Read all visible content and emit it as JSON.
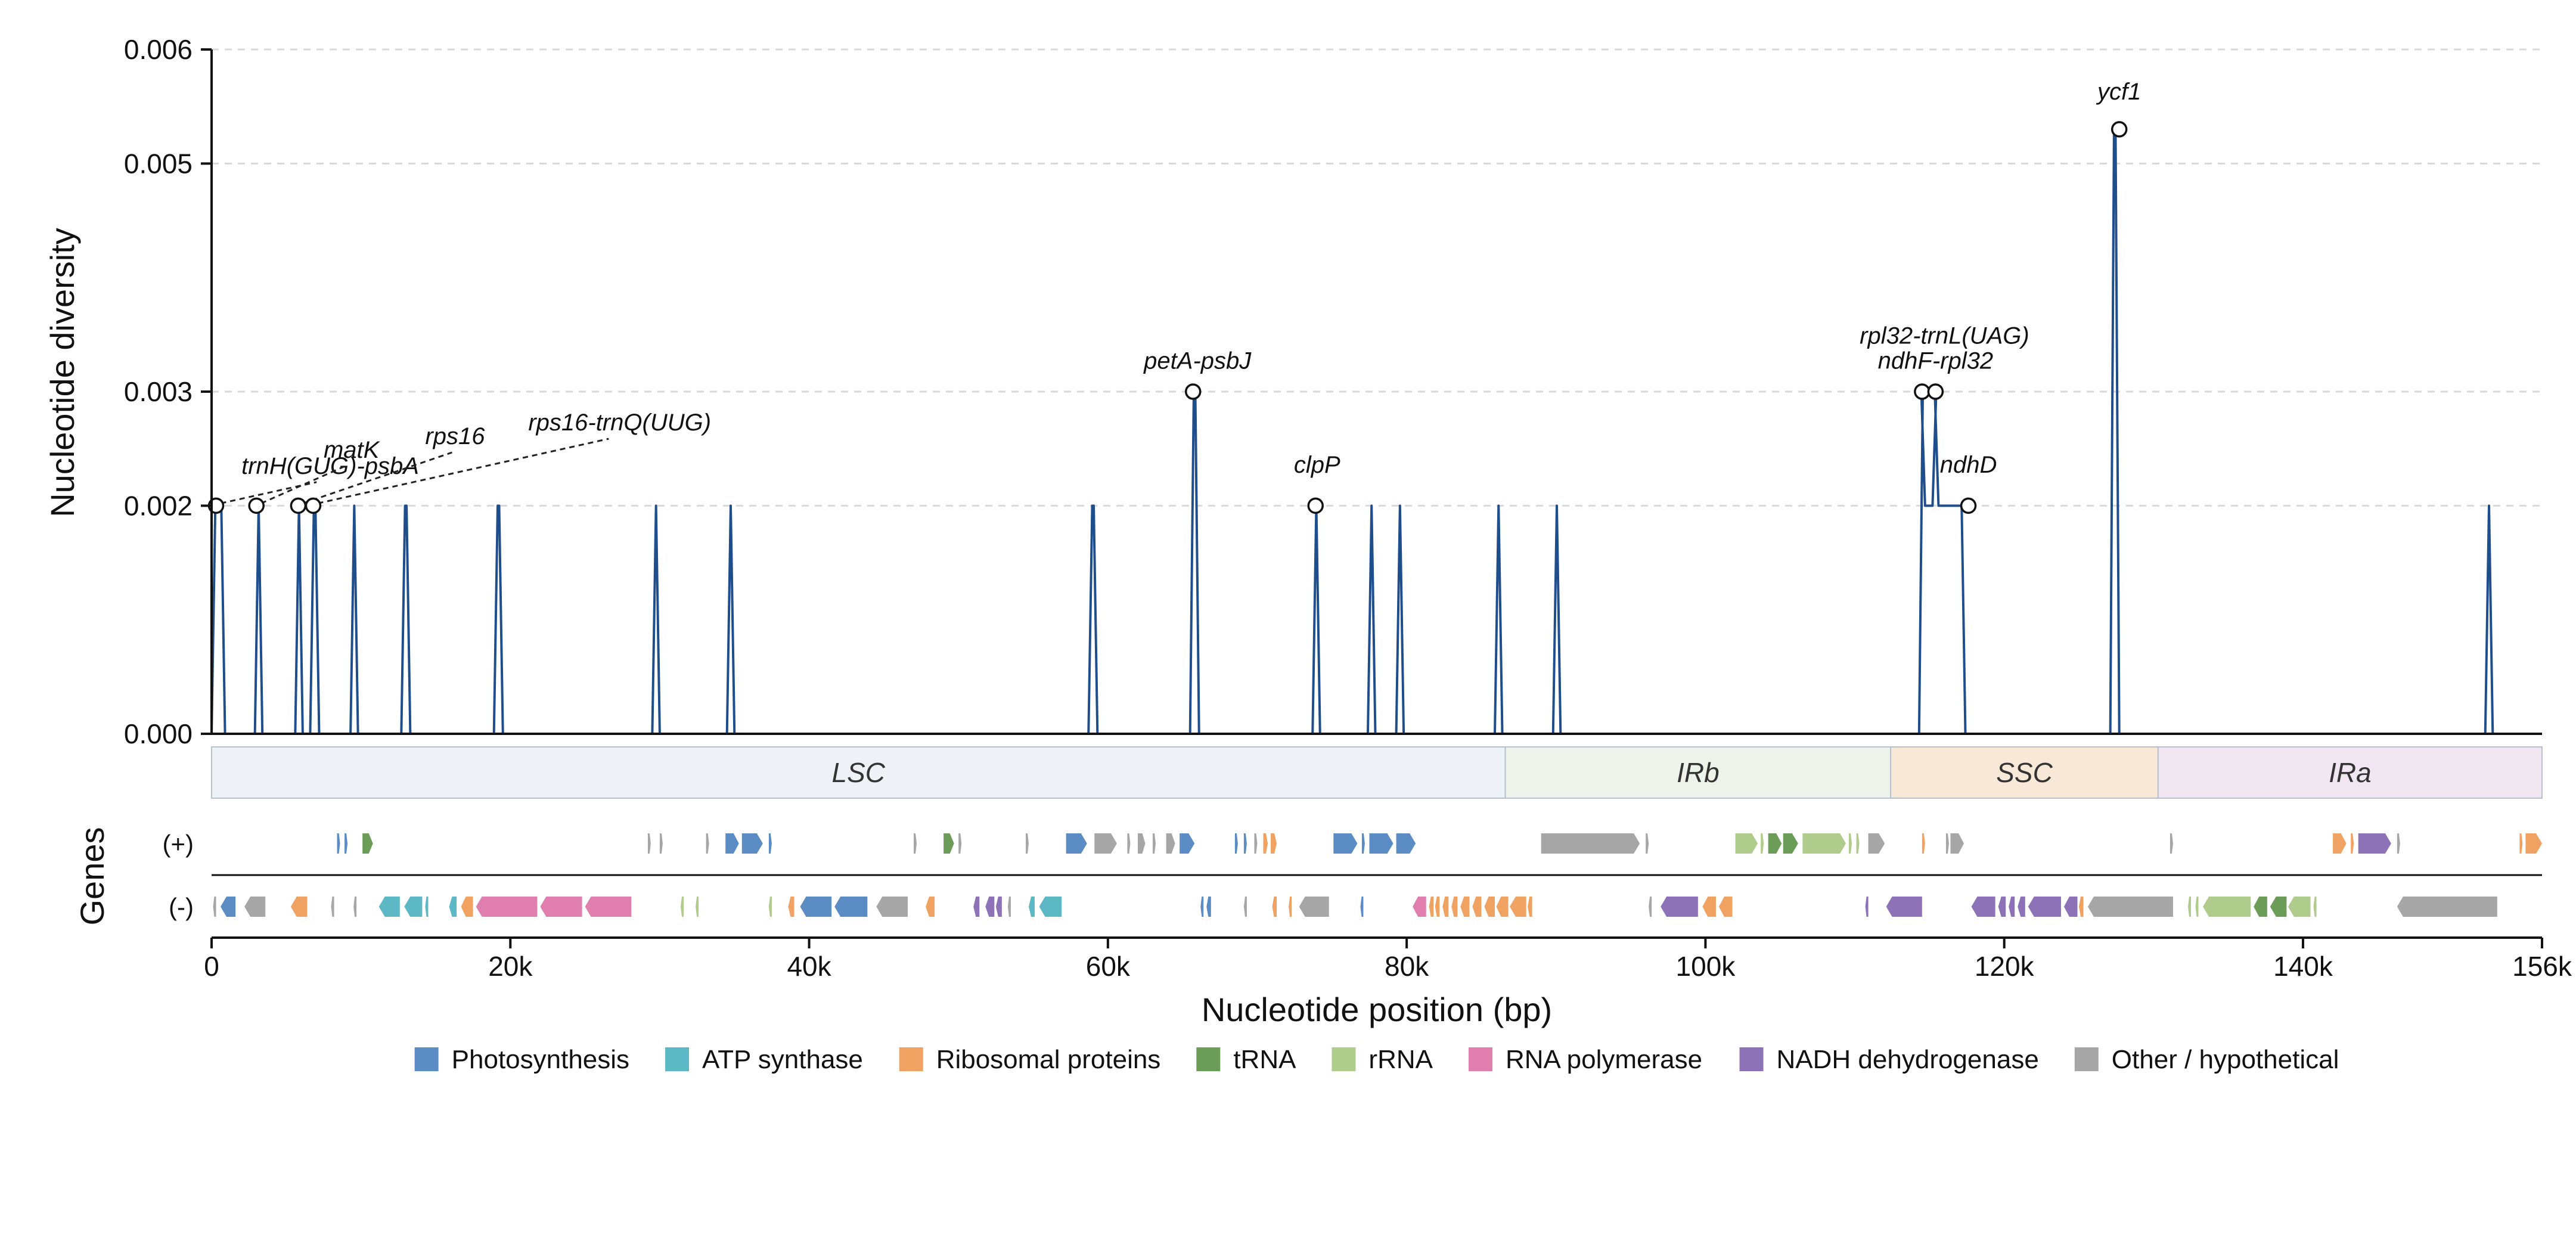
{
  "chart_data": {
    "type": "line",
    "xlabel": "Nucleotide position (bp)",
    "ylabel": "Nucleotide diversity",
    "genes_label": "Genes",
    "xlim": [
      0,
      156000
    ],
    "ylim": [
      0,
      0.006
    ],
    "x_ticks": [
      {
        "value": 0,
        "label": "0"
      },
      {
        "value": 20000,
        "label": "20k"
      },
      {
        "value": 40000,
        "label": "40k"
      },
      {
        "value": 60000,
        "label": "60k"
      },
      {
        "value": 80000,
        "label": "80k"
      },
      {
        "value": 100000,
        "label": "100k"
      },
      {
        "value": 120000,
        "label": "120k"
      },
      {
        "value": 140000,
        "label": "140k"
      },
      {
        "value": 156000,
        "label": "156k"
      }
    ],
    "y_ticks": [
      {
        "value": 0,
        "label": "0.000"
      },
      {
        "value": 0.002,
        "label": "0.002"
      },
      {
        "value": 0.003,
        "label": "0.003"
      },
      {
        "value": 0.005,
        "label": "0.005"
      },
      {
        "value": 0.006,
        "label": "0.006"
      }
    ],
    "grid": "horizontal dashed",
    "line_color": "#1f4e8c",
    "peaks": [
      {
        "start": 0,
        "end": 900,
        "value": 0.002
      },
      {
        "start": 2900,
        "end": 3400,
        "value": 0.002
      },
      {
        "start": 5600,
        "end": 6100,
        "value": 0.002
      },
      {
        "start": 6600,
        "end": 7200,
        "value": 0.002
      },
      {
        "start": 9300,
        "end": 9800,
        "value": 0.002
      },
      {
        "start": 12700,
        "end": 13300,
        "value": 0.002
      },
      {
        "start": 18900,
        "end": 19500,
        "value": 0.002
      },
      {
        "start": 29500,
        "end": 30000,
        "value": 0.002
      },
      {
        "start": 34500,
        "end": 35000,
        "value": 0.002
      },
      {
        "start": 58700,
        "end": 59300,
        "value": 0.002
      },
      {
        "start": 65500,
        "end": 66100,
        "value": 0.003
      },
      {
        "start": 73700,
        "end": 74200,
        "value": 0.002
      },
      {
        "start": 77400,
        "end": 77900,
        "value": 0.002
      },
      {
        "start": 79300,
        "end": 79800,
        "value": 0.002
      },
      {
        "start": 85900,
        "end": 86400,
        "value": 0.002
      },
      {
        "start": 89800,
        "end": 90300,
        "value": 0.002
      },
      {
        "start": 114300,
        "end": 114700,
        "value": 0.003,
        "after": 0.002
      },
      {
        "start": 115200,
        "end": 115600,
        "value": 0.003,
        "after": 0.002
      },
      {
        "start": 116900,
        "end": 117400,
        "value": 0.002
      },
      {
        "start": 127100,
        "end": 127700,
        "value": 0.0053
      },
      {
        "start": 152200,
        "end": 152700,
        "value": 0.002
      }
    ],
    "annotations": [
      {
        "text": "trnH(GUG)-psbA",
        "x": 300,
        "y": 0.002,
        "label_x": 2000,
        "label_y": 0.00228,
        "leader": "dashed-to-label"
      },
      {
        "text": "matK",
        "x": 3000,
        "y": 0.002,
        "label_x": 7500,
        "label_y": 0.00242,
        "leader": "dashed-to-label"
      },
      {
        "text": "rps16",
        "x": 5800,
        "y": 0.002,
        "label_x": 14300,
        "label_y": 0.00254,
        "leader": "dashed-to-label"
      },
      {
        "text": "rps16-trnQ(UUG)",
        "x": 6800,
        "y": 0.002,
        "label_x": 21200,
        "label_y": 0.00266,
        "leader": "dashed-to-label"
      },
      {
        "text": "petA-psbJ",
        "x": 65700,
        "y": 0.003,
        "label_x": 66000,
        "label_y": 0.0032,
        "leader": "none"
      },
      {
        "text": "clpP",
        "x": 73900,
        "y": 0.002,
        "label_x": 74000,
        "label_y": 0.00229,
        "leader": "none"
      },
      {
        "text": "rpl32-trnL(UAG)",
        "x": 114500,
        "y": 0.003,
        "label_x": 116000,
        "label_y": 0.00342,
        "leader": "none"
      },
      {
        "text": "ndhF-rpl32",
        "x": 115400,
        "y": 0.003,
        "label_x": 115400,
        "label_y": 0.0032,
        "leader": "none"
      },
      {
        "text": "ndhD",
        "x": 117600,
        "y": 0.002,
        "label_x": 117600,
        "label_y": 0.00229,
        "leader": "none"
      },
      {
        "text": "ycf1",
        "x": 127700,
        "y": 0.0053,
        "label_x": 127700,
        "label_y": 0.00556,
        "leader": "none"
      }
    ],
    "regions": [
      {
        "name": "LSC",
        "start": 0,
        "end": 86600,
        "color": "#eef2f6"
      },
      {
        "name": "IRb",
        "start": 86600,
        "end": 112400,
        "color": "#edf2ea"
      },
      {
        "name": "SSC",
        "start": 112400,
        "end": 130300,
        "color": "#f8e8d8"
      },
      {
        "name": "IRa",
        "start": 130300,
        "end": 156000,
        "color": "#f0e6f2"
      }
    ],
    "strand_labels": {
      "plus": "(+)",
      "minus": "(-)"
    },
    "categories": [
      {
        "key": "photo",
        "name": "Photosynthesis",
        "color": "#5b8cc4"
      },
      {
        "key": "atp",
        "name": "ATP synthase",
        "color": "#5cb8c4"
      },
      {
        "key": "ribo",
        "name": "Ribosomal proteins",
        "color": "#f0a262"
      },
      {
        "key": "trna",
        "name": "tRNA",
        "color": "#6b9c58"
      },
      {
        "key": "rrna",
        "name": "rRNA",
        "color": "#b0cc8c"
      },
      {
        "key": "rnap",
        "name": "RNA polymerase",
        "color": "#e07fae"
      },
      {
        "key": "ndh",
        "name": "NADH dehydrogenase",
        "color": "#8e72b8"
      },
      {
        "key": "other",
        "name": "Other / hypothetical",
        "color": "#a6a6a6"
      }
    ],
    "genes_plus": [
      {
        "s": 8400,
        "e": 8600,
        "c": "photo"
      },
      {
        "s": 8900,
        "e": 9100,
        "c": "photo"
      },
      {
        "s": 10100,
        "e": 10800,
        "c": "trna"
      },
      {
        "s": 29200,
        "e": 29400,
        "c": "other"
      },
      {
        "s": 30000,
        "e": 30200,
        "c": "other"
      },
      {
        "s": 33100,
        "e": 33300,
        "c": "other"
      },
      {
        "s": 34400,
        "e": 35300,
        "c": "photo"
      },
      {
        "s": 35500,
        "e": 36900,
        "c": "photo"
      },
      {
        "s": 37300,
        "e": 37500,
        "c": "photo"
      },
      {
        "s": 47000,
        "e": 47200,
        "c": "other"
      },
      {
        "s": 49000,
        "e": 49700,
        "c": "trna"
      },
      {
        "s": 50000,
        "e": 50200,
        "c": "other"
      },
      {
        "s": 54500,
        "e": 54700,
        "c": "other"
      },
      {
        "s": 57200,
        "e": 58600,
        "c": "photo"
      },
      {
        "s": 59100,
        "e": 60600,
        "c": "other"
      },
      {
        "s": 61300,
        "e": 61500,
        "c": "other"
      },
      {
        "s": 62000,
        "e": 62500,
        "c": "other"
      },
      {
        "s": 63000,
        "e": 63200,
        "c": "other"
      },
      {
        "s": 63900,
        "e": 64500,
        "c": "other"
      },
      {
        "s": 64800,
        "e": 65800,
        "c": "photo"
      },
      {
        "s": 68500,
        "e": 68700,
        "c": "photo"
      },
      {
        "s": 69100,
        "e": 69300,
        "c": "photo"
      },
      {
        "s": 69800,
        "e": 70000,
        "c": "other"
      },
      {
        "s": 70400,
        "e": 70700,
        "c": "ribo"
      },
      {
        "s": 70900,
        "e": 71300,
        "c": "ribo"
      },
      {
        "s": 75100,
        "e": 76700,
        "c": "photo"
      },
      {
        "s": 77000,
        "e": 77200,
        "c": "photo"
      },
      {
        "s": 77500,
        "e": 79100,
        "c": "photo"
      },
      {
        "s": 79300,
        "e": 80600,
        "c": "photo"
      },
      {
        "s": 89000,
        "e": 95600,
        "c": "other"
      },
      {
        "s": 96000,
        "e": 96200,
        "c": "other"
      },
      {
        "s": 102000,
        "e": 103500,
        "c": "rrna"
      },
      {
        "s": 103700,
        "e": 103900,
        "c": "rrna"
      },
      {
        "s": 104200,
        "e": 105100,
        "c": "trna"
      },
      {
        "s": 105200,
        "e": 106200,
        "c": "trna"
      },
      {
        "s": 106500,
        "e": 109400,
        "c": "rrna"
      },
      {
        "s": 109600,
        "e": 109800,
        "c": "rrna"
      },
      {
        "s": 110100,
        "e": 110300,
        "c": "rrna"
      },
      {
        "s": 110900,
        "e": 112000,
        "c": "other"
      },
      {
        "s": 114500,
        "e": 114700,
        "c": "ribo"
      },
      {
        "s": 116100,
        "e": 116300,
        "c": "other"
      },
      {
        "s": 116400,
        "e": 117300,
        "c": "other"
      },
      {
        "s": 131100,
        "e": 131300,
        "c": "other"
      },
      {
        "s": 142000,
        "e": 142900,
        "c": "ribo"
      },
      {
        "s": 143200,
        "e": 143400,
        "c": "ribo"
      },
      {
        "s": 143700,
        "e": 145900,
        "c": "ndh"
      },
      {
        "s": 146300,
        "e": 146500,
        "c": "other"
      },
      {
        "s": 154500,
        "e": 154700,
        "c": "ribo"
      },
      {
        "s": 154900,
        "e": 156000,
        "c": "ribo"
      }
    ],
    "genes_minus": [
      {
        "s": 100,
        "e": 300,
        "c": "other"
      },
      {
        "s": 600,
        "e": 1600,
        "c": "photo"
      },
      {
        "s": 2200,
        "e": 3600,
        "c": "other"
      },
      {
        "s": 5300,
        "e": 6400,
        "c": "ribo"
      },
      {
        "s": 8000,
        "e": 8200,
        "c": "other"
      },
      {
        "s": 9500,
        "e": 9700,
        "c": "other"
      },
      {
        "s": 11200,
        "e": 12600,
        "c": "atp"
      },
      {
        "s": 12900,
        "e": 14100,
        "c": "atp"
      },
      {
        "s": 14300,
        "e": 14500,
        "c": "atp"
      },
      {
        "s": 15900,
        "e": 16400,
        "c": "atp"
      },
      {
        "s": 16700,
        "e": 17500,
        "c": "ribo"
      },
      {
        "s": 17700,
        "e": 21800,
        "c": "rnap"
      },
      {
        "s": 22000,
        "e": 24800,
        "c": "rnap"
      },
      {
        "s": 25000,
        "e": 28100,
        "c": "rnap"
      },
      {
        "s": 31400,
        "e": 31600,
        "c": "rrna"
      },
      {
        "s": 32400,
        "e": 32600,
        "c": "rrna"
      },
      {
        "s": 37300,
        "e": 37500,
        "c": "rrna"
      },
      {
        "s": 38600,
        "e": 39000,
        "c": "ribo"
      },
      {
        "s": 39400,
        "e": 41500,
        "c": "photo"
      },
      {
        "s": 41700,
        "e": 43900,
        "c": "photo"
      },
      {
        "s": 44500,
        "e": 46600,
        "c": "other"
      },
      {
        "s": 47800,
        "e": 48400,
        "c": "ribo"
      },
      {
        "s": 51000,
        "e": 51400,
        "c": "ndh"
      },
      {
        "s": 51800,
        "e": 52400,
        "c": "ndh"
      },
      {
        "s": 52500,
        "e": 52900,
        "c": "ndh"
      },
      {
        "s": 53300,
        "e": 53500,
        "c": "other"
      },
      {
        "s": 54700,
        "e": 55100,
        "c": "atp"
      },
      {
        "s": 55400,
        "e": 56900,
        "c": "atp"
      },
      {
        "s": 66200,
        "e": 66400,
        "c": "photo"
      },
      {
        "s": 66600,
        "e": 66900,
        "c": "photo"
      },
      {
        "s": 69100,
        "e": 69300,
        "c": "other"
      },
      {
        "s": 71000,
        "e": 71300,
        "c": "ribo"
      },
      {
        "s": 72100,
        "e": 72300,
        "c": "ribo"
      },
      {
        "s": 72800,
        "e": 74800,
        "c": "other"
      },
      {
        "s": 76900,
        "e": 77100,
        "c": "photo"
      },
      {
        "s": 80400,
        "e": 81300,
        "c": "rnap"
      },
      {
        "s": 81500,
        "e": 81800,
        "c": "ribo"
      },
      {
        "s": 81900,
        "e": 82200,
        "c": "ribo"
      },
      {
        "s": 82400,
        "e": 82800,
        "c": "ribo"
      },
      {
        "s": 83000,
        "e": 83400,
        "c": "ribo"
      },
      {
        "s": 83600,
        "e": 84200,
        "c": "ribo"
      },
      {
        "s": 84400,
        "e": 85000,
        "c": "ribo"
      },
      {
        "s": 85200,
        "e": 85900,
        "c": "ribo"
      },
      {
        "s": 86000,
        "e": 86800,
        "c": "ribo"
      },
      {
        "s": 86900,
        "e": 88000,
        "c": "ribo"
      },
      {
        "s": 88100,
        "e": 88400,
        "c": "ribo"
      },
      {
        "s": 96200,
        "e": 96400,
        "c": "other"
      },
      {
        "s": 97000,
        "e": 99500,
        "c": "ndh"
      },
      {
        "s": 99800,
        "e": 100700,
        "c": "ribo"
      },
      {
        "s": 100900,
        "e": 101800,
        "c": "ribo"
      },
      {
        "s": 110700,
        "e": 110900,
        "c": "ndh"
      },
      {
        "s": 112100,
        "e": 114500,
        "c": "ndh"
      },
      {
        "s": 117800,
        "e": 119400,
        "c": "ndh"
      },
      {
        "s": 119600,
        "e": 120100,
        "c": "ndh"
      },
      {
        "s": 120300,
        "e": 120700,
        "c": "ndh"
      },
      {
        "s": 120900,
        "e": 121400,
        "c": "ndh"
      },
      {
        "s": 121600,
        "e": 123800,
        "c": "ndh"
      },
      {
        "s": 124000,
        "e": 124900,
        "c": "ndh"
      },
      {
        "s": 125000,
        "e": 125300,
        "c": "ribo"
      },
      {
        "s": 125600,
        "e": 131300,
        "c": "other"
      },
      {
        "s": 132300,
        "e": 132500,
        "c": "rrna"
      },
      {
        "s": 132800,
        "e": 133000,
        "c": "rrna"
      },
      {
        "s": 133300,
        "e": 136500,
        "c": "rrna"
      },
      {
        "s": 136700,
        "e": 137600,
        "c": "trna"
      },
      {
        "s": 137800,
        "e": 138900,
        "c": "trna"
      },
      {
        "s": 139000,
        "e": 140500,
        "c": "rrna"
      },
      {
        "s": 140700,
        "e": 140900,
        "c": "rrna"
      },
      {
        "s": 146300,
        "e": 153000,
        "c": "other"
      }
    ]
  }
}
